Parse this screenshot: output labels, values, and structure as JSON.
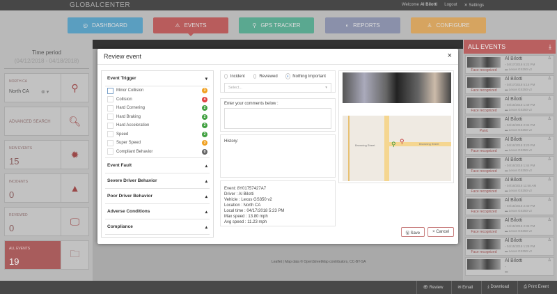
{
  "header": {
    "logo": "GLOBALCENTER",
    "welcome": "Welcome",
    "user": "Al Bilotti",
    "logout": "Logout",
    "settings": "Settings"
  },
  "nav": [
    {
      "label": "DASHBOARD",
      "color": "#5a9ec0"
    },
    {
      "label": "EVENTS",
      "color": "#b85c5c"
    },
    {
      "label": "GPS TRACKER",
      "color": "#5aa890"
    },
    {
      "label": "REPORTS",
      "color": "#8a90aa"
    },
    {
      "label": "CONFIGURE",
      "color": "#d6a460"
    }
  ],
  "sidebar": {
    "time_label": "Time period",
    "time_range": "(04/12/2018 - 04/18/2018)",
    "region_label": "NORTH CA",
    "region_value": "North CA",
    "advanced": "ADVANCED SEARCH",
    "new_events": {
      "label": "NEW EVENTS",
      "value": "15"
    },
    "incidents": {
      "label": "INCIDENTS",
      "value": "0"
    },
    "reviewed": {
      "label": "REVIEWED",
      "value": "0"
    },
    "all_events": {
      "label": "ALL EVENTS",
      "value": "19"
    }
  },
  "events_panel": {
    "title": "ALL EVENTS",
    "items": [
      {
        "name": "Al Bilotti",
        "date": "04/17/2018 5:22 PM",
        "vehicle": "Lexus GS350 v2",
        "flag": "Face recognized"
      },
      {
        "name": "Al Bilotti",
        "date": "04/17/2018 5:16 PM",
        "vehicle": "Lexus GS350 v2",
        "flag": "Face recognized"
      },
      {
        "name": "Al Bilotti",
        "date": "04/16/2018 1:49 PM",
        "vehicle": "Lexus GS350 v2",
        "flag": "Face recognized"
      },
      {
        "name": "Al Bilotti",
        "date": "04/16/2018 2:34 PM",
        "vehicle": "Lexus GS350 v2",
        "flag": "Panic"
      },
      {
        "name": "Al Bilotti",
        "date": "04/16/2018 3:20 PM",
        "vehicle": "Lexus GS350 v2",
        "flag": "Face recognized"
      },
      {
        "name": "Al Bilotti",
        "date": "04/16/2018 1:44 PM",
        "vehicle": "Lexus GS350 v2",
        "flag": "Face recognized"
      },
      {
        "name": "Al Bilotti",
        "date": "04/16/2018 11:58 AM",
        "vehicle": "Lexus GS350 v2",
        "flag": "Face recognized"
      },
      {
        "name": "Al Bilotti",
        "date": "04/15/2018 2:40 PM",
        "vehicle": "Lexus GS350 v2",
        "flag": "Face recognized"
      },
      {
        "name": "Al Bilotti",
        "date": "04/15/2018 2:35 PM",
        "vehicle": "Lexus GS350 v2",
        "flag": "Face recognized"
      },
      {
        "name": "Al Bilotti",
        "date": "04/15/2018 1:28 PM",
        "vehicle": "Lexus GS350 v2",
        "flag": "Face recognized"
      },
      {
        "name": "Al Bilotti",
        "date": "",
        "vehicle": "",
        "flag": ""
      }
    ]
  },
  "bottom": {
    "review": "Review",
    "email": "Email",
    "download": "Download",
    "print": "Print Event"
  },
  "map_attribution": "Leaflet | Map data © OpenStreetMap contributors, CC-BY-SA",
  "modal": {
    "title": "Review event",
    "close": "×",
    "trigger_title": "Event Trigger",
    "triggers": [
      {
        "label": "Minor Collision",
        "count": "3",
        "color": "#f0a020"
      },
      {
        "label": "Collision",
        "count": "4",
        "color": "#e04040"
      },
      {
        "label": "Hard Cornering",
        "count": "2",
        "color": "#40a040"
      },
      {
        "label": "Hard Braking",
        "count": "2",
        "color": "#40a040"
      },
      {
        "label": "Hard Acceleration",
        "count": "2",
        "color": "#40a040"
      },
      {
        "label": "Speed",
        "count": "2",
        "color": "#40a040"
      },
      {
        "label": "Super Speed",
        "count": "3",
        "color": "#f0a020"
      },
      {
        "label": "Compliant Behavior",
        "count": "0",
        "color": "#666666"
      }
    ],
    "sections": [
      "Event Fault",
      "Severe Driver Behavior",
      "Poor Driver Behavior",
      "Adverse Conditions",
      "Compliance"
    ],
    "status": {
      "options": [
        "Incident",
        "Reviewed",
        "Nothing Important"
      ],
      "selected": "Nothing Important",
      "select_placeholder": "Select..."
    },
    "comments_label": "Enter your comments below :",
    "history_label": "History:",
    "info": [
      "Event: 8Y01757427A7",
      "Driver : Al Bilotti",
      "Vehicle : Lexus GS350 v2",
      "Location : North CA",
      "Local time : 04/17/2018 5:23 PM",
      "Max speed : 13.80 mph",
      "Avg speed : 11.23 mph"
    ],
    "map_streets": [
      "Browning Street",
      "Browning Street"
    ],
    "save": "Save",
    "cancel": "Cancel"
  }
}
